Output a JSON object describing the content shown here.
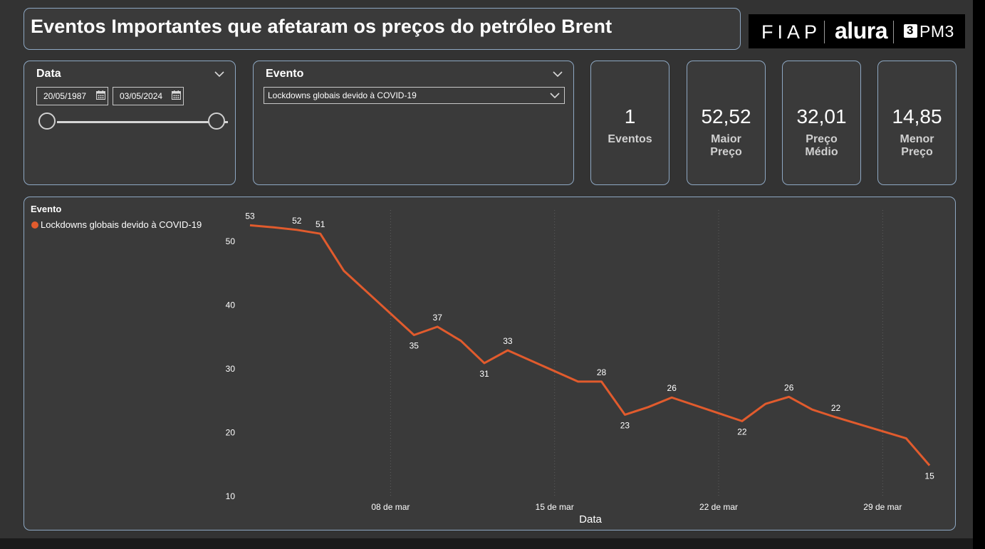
{
  "header": {
    "title": "Eventos Importantes que afetaram os preços do petróleo Brent",
    "logos": [
      "FIAP",
      "alura",
      "PM3"
    ]
  },
  "date_slicer": {
    "title": "Data",
    "start": "20/05/1987",
    "end": "03/05/2024",
    "icons": [
      "chevron-down-icon",
      "calendar-icon"
    ]
  },
  "event_slicer": {
    "title": "Evento",
    "selected": "Lockdowns globais devido à COVID-19"
  },
  "cards": [
    {
      "value": "1",
      "label": "Eventos"
    },
    {
      "value": "52,52",
      "label": "Maior Preço"
    },
    {
      "value": "32,01",
      "label": "Preço Médio"
    },
    {
      "value": "14,85",
      "label": "Menor Preço"
    }
  ],
  "colors": {
    "series": "#e15b2d",
    "background": "#333333",
    "panel": "#3a3a3a",
    "border": "#8ea8c3"
  },
  "chart_data": {
    "type": "line",
    "legend_title": "Evento",
    "legend_position": "top-left",
    "xlabel": "Data",
    "ylabel": "",
    "ylim": [
      10,
      55
    ],
    "yticks": [
      10,
      20,
      30,
      40,
      50
    ],
    "xticks": [
      {
        "date": "2020-03-08",
        "label": "08 de mar"
      },
      {
        "date": "2020-03-15",
        "label": "15 de mar"
      },
      {
        "date": "2020-03-22",
        "label": "22 de mar"
      },
      {
        "date": "2020-03-29",
        "label": "29 de mar"
      }
    ],
    "grid": "vertical dotted",
    "series": [
      {
        "name": "Lockdowns globais devido à COVID-19",
        "points": [
          {
            "date": "2020-03-02",
            "y": 52.52,
            "label": "53"
          },
          {
            "date": "2020-03-03",
            "y": 52.2
          },
          {
            "date": "2020-03-04",
            "y": 51.8,
            "label": "52"
          },
          {
            "date": "2020-03-05",
            "y": 51.2,
            "label": "51"
          },
          {
            "date": "2020-03-06",
            "y": 45.4
          },
          {
            "date": "2020-03-09",
            "y": 35.3,
            "label": "35"
          },
          {
            "date": "2020-03-10",
            "y": 36.6,
            "label": "37"
          },
          {
            "date": "2020-03-11",
            "y": 34.4
          },
          {
            "date": "2020-03-12",
            "y": 30.9,
            "label": "31"
          },
          {
            "date": "2020-03-13",
            "y": 32.9,
            "label": "33"
          },
          {
            "date": "2020-03-16",
            "y": 28.0
          },
          {
            "date": "2020-03-17",
            "y": 28.0,
            "label": "28"
          },
          {
            "date": "2020-03-18",
            "y": 22.8,
            "label": "23"
          },
          {
            "date": "2020-03-19",
            "y": 24.0
          },
          {
            "date": "2020-03-20",
            "y": 25.5,
            "label": "26"
          },
          {
            "date": "2020-03-23",
            "y": 21.8,
            "label": "22"
          },
          {
            "date": "2020-03-24",
            "y": 24.5
          },
          {
            "date": "2020-03-25",
            "y": 25.6,
            "label": "26"
          },
          {
            "date": "2020-03-26",
            "y": 23.6
          },
          {
            "date": "2020-03-27",
            "y": 22.4,
            "label": "22"
          },
          {
            "date": "2020-03-30",
            "y": 19.1
          },
          {
            "date": "2020-03-31",
            "y": 14.85,
            "label": "15"
          }
        ]
      }
    ]
  }
}
